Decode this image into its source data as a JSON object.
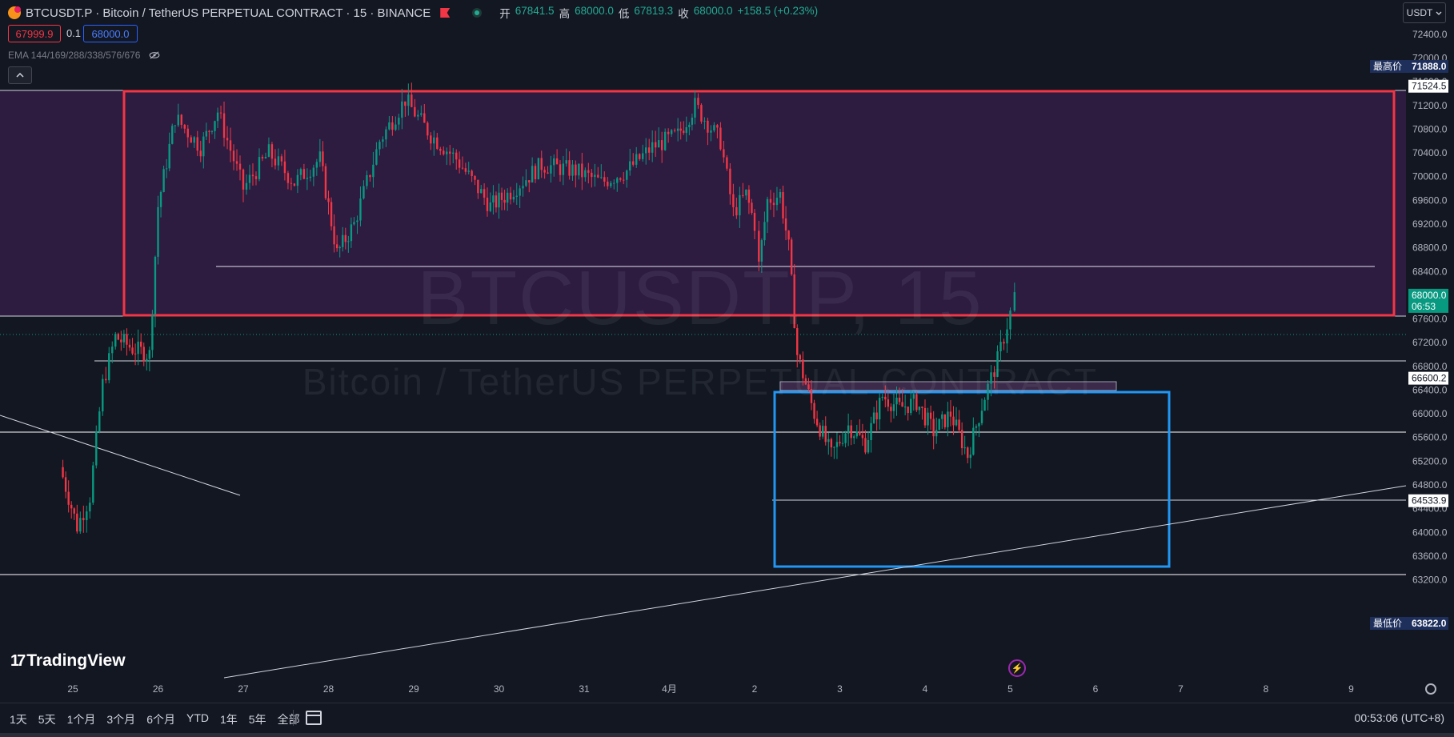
{
  "header": {
    "title": "BTCUSDT.P · Bitcoin / TetherUS PERPETUAL CONTRACT · 15 · BINANCE",
    "ohlc": [
      {
        "label": "开",
        "value": "67841.5"
      },
      {
        "label": "高",
        "value": "68000.0"
      },
      {
        "label": "低",
        "value": "67819.3"
      },
      {
        "label": "收",
        "value": "68000.0"
      }
    ],
    "change": "+158.5 (+0.23%)"
  },
  "trade": {
    "sell": "67999.9",
    "spread": "0.1",
    "buy": "68000.0"
  },
  "indicator": {
    "label": "EMA 144/169/288/338/576/676"
  },
  "currency": "USDT",
  "watermark": {
    "symbol": "BTCUSDT.P, 15",
    "name": "Bitcoin / TetherUS PERPETUAL CONTRACT"
  },
  "branding": "TradingView",
  "price_axis": {
    "ticks": [
      "72400.0",
      "72000.0",
      "71600.0",
      "71200.0",
      "70800.0",
      "70400.0",
      "70000.0",
      "69600.0",
      "69200.0",
      "68800.0",
      "68400.0",
      "67600.0",
      "67200.0",
      "66800.0",
      "66400.0",
      "66000.0",
      "65600.0",
      "65200.0",
      "64800.0",
      "64400.0",
      "64000.0",
      "63600.0",
      "63200.0"
    ],
    "high_label": "最高价",
    "high_value": "71888.0",
    "low_label": "最低价",
    "low_value": "63822.0",
    "current_price": "68000.0",
    "countdown": "06:53",
    "line_labels": [
      "71524.5",
      "66600.2",
      "64533.9"
    ],
    "accent": "#089981",
    "marker_bg": "#1e2f5c"
  },
  "time_axis": {
    "labels": [
      "25",
      "26",
      "27",
      "28",
      "29",
      "30",
      "31",
      "4月",
      "2",
      "3",
      "4",
      "5",
      "6",
      "7",
      "8",
      "9"
    ]
  },
  "bottombar": {
    "ranges": [
      "1天",
      "5天",
      "1个月",
      "3个月",
      "6个月",
      "YTD",
      "1年",
      "5年",
      "全部"
    ],
    "clock": "00:53:06 (UTC+8)"
  },
  "chart_data": {
    "type": "candlestick",
    "symbol": "BTCUSDT.P",
    "interval": "15",
    "ylim": [
      63000,
      72600
    ],
    "up_color": "#089981",
    "down_color": "#f23645",
    "current_price": 68000.0,
    "session_high": 71888.0,
    "session_low": 63822.0,
    "horizontal_lines": [
      71524.5,
      68000.0,
      67600.0,
      66600.2,
      65600.0,
      64533.9,
      69000.0
    ],
    "zones": [
      {
        "name": "range-box-red",
        "price_top": 71500,
        "price_bottom": 68250,
        "color": "#f23645",
        "fill": "#7b1fa2"
      },
      {
        "name": "range-box-blue",
        "price_top": 67150,
        "price_bottom": 64650,
        "color": "#2196f3"
      }
    ],
    "price_path": [
      {
        "day": 24.85,
        "price": 65100
      },
      {
        "day": 25.05,
        "price": 64100
      },
      {
        "day": 25.2,
        "price": 64600
      },
      {
        "day": 25.35,
        "price": 66500
      },
      {
        "day": 25.5,
        "price": 67300
      },
      {
        "day": 25.7,
        "price": 67100
      },
      {
        "day": 25.9,
        "price": 67000
      },
      {
        "day": 26.0,
        "price": 69500
      },
      {
        "day": 26.2,
        "price": 71000
      },
      {
        "day": 26.5,
        "price": 70500
      },
      {
        "day": 26.7,
        "price": 71100
      },
      {
        "day": 27.0,
        "price": 69800
      },
      {
        "day": 27.3,
        "price": 70400
      },
      {
        "day": 27.6,
        "price": 69900
      },
      {
        "day": 27.9,
        "price": 70300
      },
      {
        "day": 28.1,
        "price": 68700
      },
      {
        "day": 28.3,
        "price": 69200
      },
      {
        "day": 28.6,
        "price": 70600
      },
      {
        "day": 28.9,
        "price": 71300
      },
      {
        "day": 29.2,
        "price": 70700
      },
      {
        "day": 29.5,
        "price": 70300
      },
      {
        "day": 29.9,
        "price": 69500
      },
      {
        "day": 30.1,
        "price": 69700
      },
      {
        "day": 30.5,
        "price": 70200
      },
      {
        "day": 30.9,
        "price": 70100
      },
      {
        "day": 31.2,
        "price": 69900
      },
      {
        "day": 31.5,
        "price": 70100
      },
      {
        "day": 31.8,
        "price": 70500
      },
      {
        "day": 32.1,
        "price": 70700
      },
      {
        "day": 32.3,
        "price": 71200
      },
      {
        "day": 32.6,
        "price": 70600
      },
      {
        "day": 32.75,
        "price": 69400
      },
      {
        "day": 32.9,
        "price": 69700
      },
      {
        "day": 33.0,
        "price": 69200
      },
      {
        "day": 33.05,
        "price": 68500
      },
      {
        "day": 33.15,
        "price": 69600
      },
      {
        "day": 33.3,
        "price": 69700
      },
      {
        "day": 33.4,
        "price": 68800
      },
      {
        "day": 33.5,
        "price": 67000
      },
      {
        "day": 33.7,
        "price": 66000
      },
      {
        "day": 33.9,
        "price": 65300
      },
      {
        "day": 34.1,
        "price": 65800
      },
      {
        "day": 34.3,
        "price": 65500
      },
      {
        "day": 34.5,
        "price": 66300
      },
      {
        "day": 34.7,
        "price": 66100
      },
      {
        "day": 34.9,
        "price": 66200
      },
      {
        "day": 35.1,
        "price": 65700
      },
      {
        "day": 35.3,
        "price": 66000
      },
      {
        "day": 35.5,
        "price": 65300
      },
      {
        "day": 35.7,
        "price": 66300
      },
      {
        "day": 35.85,
        "price": 66900
      },
      {
        "day": 36.0,
        "price": 67700
      },
      {
        "day": 36.05,
        "price": 68000
      }
    ]
  }
}
